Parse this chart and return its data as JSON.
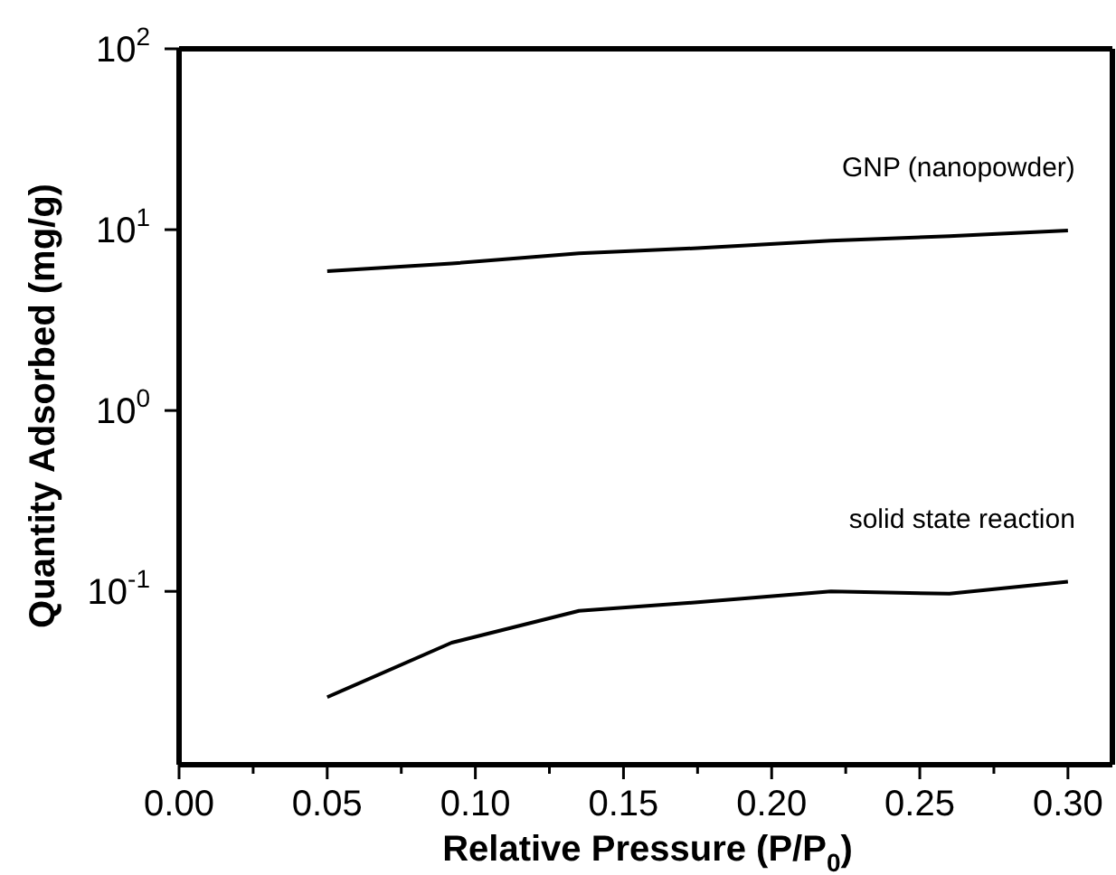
{
  "chart_data": {
    "type": "line",
    "xlabel": "Relative Pressure (P/P$_{0}$)",
    "ylabel": "Quantity Adsorbed (mg/g)",
    "log": "y",
    "marker": "none",
    "line_style": "solid",
    "xlim": [
      0,
      0.315
    ],
    "xticks": [
      {
        "value": 0,
        "label": "0.00"
      },
      {
        "value": 0.025,
        "label": null
      },
      {
        "value": 0.05,
        "label": "0.05"
      },
      {
        "value": 0.075,
        "label": null
      },
      {
        "value": 0.1,
        "label": "0.10"
      },
      {
        "value": 0.125,
        "label": null
      },
      {
        "value": 0.15,
        "label": "0.15"
      },
      {
        "value": 0.175,
        "label": null
      },
      {
        "value": 0.2,
        "label": "0.20"
      },
      {
        "value": 0.225,
        "label": null
      },
      {
        "value": 0.25,
        "label": "0.25"
      },
      {
        "value": 0.275,
        "label": null
      },
      {
        "value": 0.3,
        "label": "0.30"
      }
    ],
    "ylim": [
      0.011,
      100
    ],
    "yticks": [
      {
        "value": 0.1,
        "label": "10$^{-1}$"
      },
      {
        "value": 1,
        "label": "10$^{0}$"
      },
      {
        "value": 10,
        "label": "10$^{1}$"
      },
      {
        "value": 100,
        "label": "10$^{2}$"
      }
    ],
    "x": [
      0.05,
      0.092,
      0.135,
      0.175,
      0.22,
      0.26,
      0.3
    ],
    "series": [
      {
        "name": "GNP (nanopowder)",
        "color": "#000000",
        "values": [
          5.9,
          6.5,
          7.4,
          7.9,
          8.7,
          9.2,
          9.9
        ]
      },
      {
        "name": "solid state reaction",
        "color": "#000000",
        "values": [
          0.026,
          0.052,
          0.078,
          0.087,
          0.1,
          0.097,
          0.113
        ]
      }
    ]
  }
}
